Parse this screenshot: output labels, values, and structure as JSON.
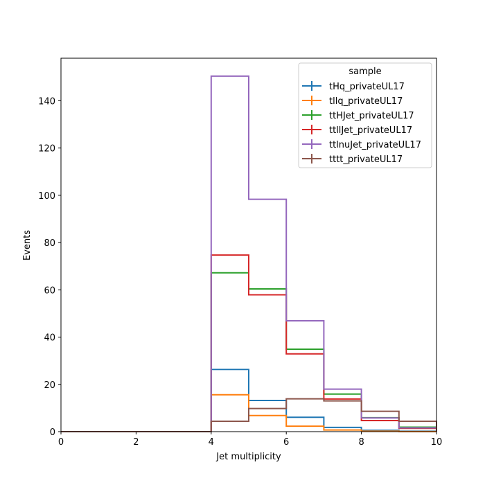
{
  "chart_data": {
    "type": "line",
    "subtype": "step-histogram",
    "xlabel": "Jet multiplicity",
    "ylabel": "Events",
    "xlim": [
      0,
      10
    ],
    "ylim": [
      0,
      158
    ],
    "x_ticks": [
      0,
      2,
      4,
      6,
      8,
      10
    ],
    "y_ticks": [
      0,
      20,
      40,
      60,
      80,
      100,
      120,
      140
    ],
    "bin_edges": [
      0,
      1,
      2,
      3,
      4,
      5,
      6,
      7,
      8,
      9,
      10
    ],
    "grid": false,
    "legend": {
      "title": "sample",
      "placement": "top-right"
    },
    "series": [
      {
        "name": "tHq_privateUL17",
        "color": "#1f77b4",
        "values": [
          0,
          0,
          0,
          0,
          26.3,
          13.2,
          6.1,
          1.8,
          0.6,
          0.2
        ]
      },
      {
        "name": "tllq_privateUL17",
        "color": "#ff7f0e",
        "values": [
          0,
          0,
          0,
          0,
          15.6,
          6.8,
          2.3,
          0.7,
          0.2,
          0.05
        ]
      },
      {
        "name": "ttHJet_privateUL17",
        "color": "#2ca02c",
        "values": [
          0,
          0,
          0,
          0,
          67.2,
          60.4,
          34.9,
          15.9,
          5.9,
          1.9
        ]
      },
      {
        "name": "ttllJet_privateUL17",
        "color": "#d62728",
        "values": [
          0,
          0,
          0,
          0,
          74.7,
          57.9,
          32.9,
          13.8,
          4.7,
          1.4
        ]
      },
      {
        "name": "ttlnuJet_privateUL17",
        "color": "#9467bd",
        "values": [
          0,
          0,
          0,
          0,
          150.4,
          98.3,
          46.9,
          18.0,
          5.8,
          1.6
        ]
      },
      {
        "name": "tttt_privateUL17",
        "color": "#8c564b",
        "values": [
          0,
          0,
          0,
          0,
          4.4,
          9.8,
          13.9,
          13.0,
          8.6,
          4.4
        ]
      }
    ]
  }
}
